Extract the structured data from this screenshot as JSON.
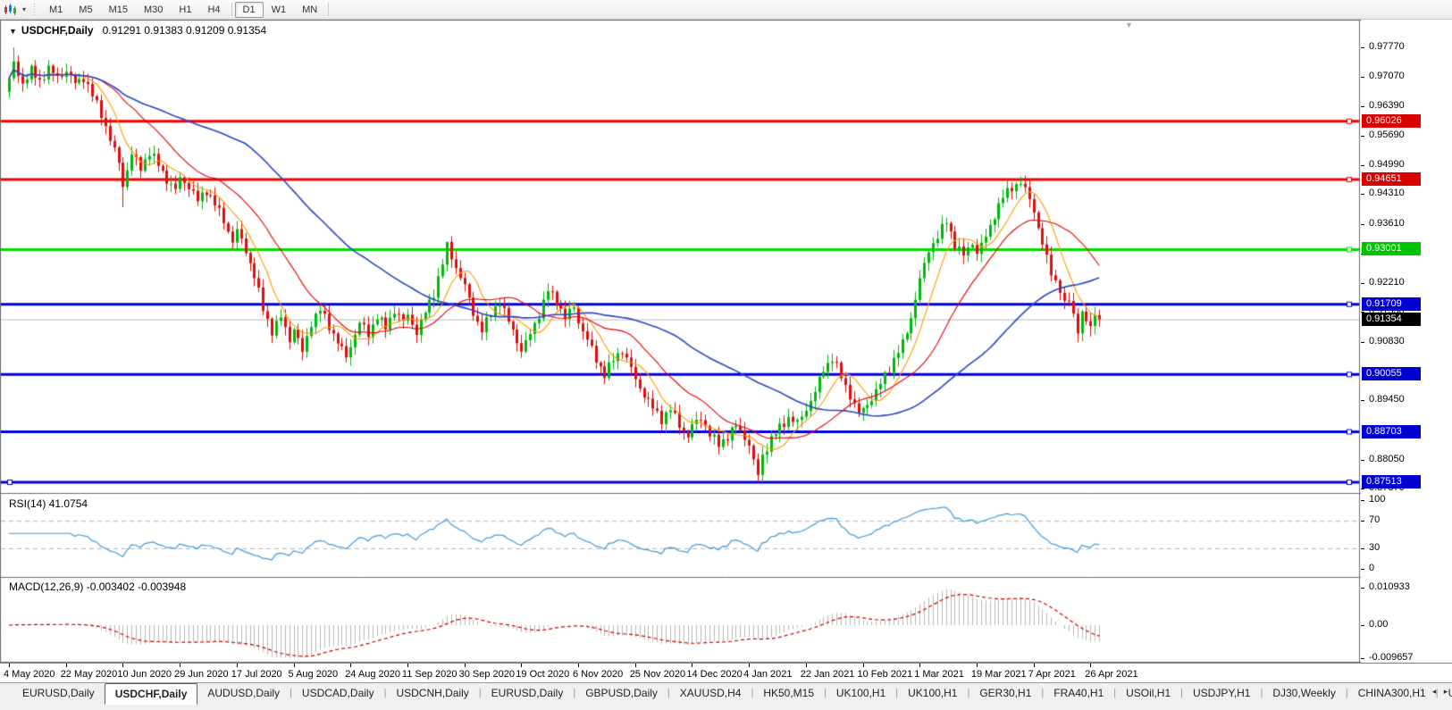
{
  "toolbar": {
    "chart_icon": "candlestick-chart-icon",
    "dropdown_caret": "▾",
    "periods": [
      {
        "label": "M1",
        "active": false,
        "sep_before": false
      },
      {
        "label": "M5",
        "active": false,
        "sep_before": false
      },
      {
        "label": "M15",
        "active": false,
        "sep_before": false
      },
      {
        "label": "M30",
        "active": false,
        "sep_before": false
      },
      {
        "label": "H1",
        "active": false,
        "sep_before": false
      },
      {
        "label": "H4",
        "active": false,
        "sep_before": false
      },
      {
        "label": "D1",
        "active": true,
        "sep_before": true
      },
      {
        "label": "W1",
        "active": false,
        "sep_before": false
      },
      {
        "label": "MN",
        "active": false,
        "sep_before": false
      }
    ]
  },
  "chart_header": {
    "collapse_icon": "▼",
    "symbol": "USDCHF,Daily",
    "ohlc": "0.91291 0.91383 0.91209 0.91354"
  },
  "indicators": {
    "rsi": {
      "label": "RSI(14)",
      "value": "41.0754",
      "color": "#3e9bde",
      "levels": [
        70,
        30
      ],
      "range": [
        0,
        100
      ],
      "axis_labels": [
        {
          "text": "100",
          "value": 100
        },
        {
          "text": "70",
          "value": 70
        },
        {
          "text": "30",
          "value": 30
        },
        {
          "text": "0",
          "value": 0
        }
      ]
    },
    "macd": {
      "label": "MACD(12,26,9)",
      "value": "-0.003402 -0.003948",
      "histogram_color": "#b8b8b8",
      "signal_color": "#cc0000",
      "axis_labels": [
        {
          "text": "0.010933",
          "value": 0.010933
        },
        {
          "text": "0.00",
          "value": 0.0
        },
        {
          "text": "-0.009657",
          "value": -0.009657
        }
      ]
    }
  },
  "price_axis": {
    "ticks": [
      {
        "label": "0.97770",
        "price": 0.9777
      },
      {
        "label": "0.97070",
        "price": 0.9707
      },
      {
        "label": "0.96390",
        "price": 0.9639
      },
      {
        "label": "0.95690",
        "price": 0.9569
      },
      {
        "label": "0.94990",
        "price": 0.9499
      },
      {
        "label": "0.94310",
        "price": 0.9431
      },
      {
        "label": "0.93610",
        "price": 0.9361
      },
      {
        "label": "0.92910",
        "price": 0.9291
      },
      {
        "label": "0.92210",
        "price": 0.9221
      },
      {
        "label": "0.91530",
        "price": 0.9153
      },
      {
        "label": "0.90830",
        "price": 0.9083
      },
      {
        "label": "0.89450",
        "price": 0.8945
      },
      {
        "label": "0.88050",
        "price": 0.8805
      },
      {
        "label": "0.87370",
        "price": 0.8737
      }
    ]
  },
  "tabs": {
    "items": [
      {
        "label": "EURUSD,Daily",
        "active": false
      },
      {
        "label": "USDCHF,Daily",
        "active": true
      },
      {
        "label": "AUDUSD,Daily",
        "active": false
      },
      {
        "label": "USDCAD,Daily",
        "active": false
      },
      {
        "label": "USDCNH,Daily",
        "active": false
      },
      {
        "label": "EURUSD,Daily",
        "active": false
      },
      {
        "label": "GBPUSD,Daily",
        "active": false
      },
      {
        "label": "XAUUSD,H4",
        "active": false
      },
      {
        "label": "HK50,M15",
        "active": false
      },
      {
        "label": "UK100,H1",
        "active": false
      },
      {
        "label": "UK100,H1",
        "active": false
      },
      {
        "label": "GER30,H1",
        "active": false
      },
      {
        "label": "FRA40,H1",
        "active": false
      },
      {
        "label": "USOil,H1",
        "active": false
      },
      {
        "label": "USDJPY,H1",
        "active": false
      },
      {
        "label": "DJ30,Weekly",
        "active": false
      },
      {
        "label": "CHINA300,H1",
        "active": false
      },
      {
        "label": "U",
        "active": false
      }
    ],
    "scroll_left": "◂",
    "scroll_right": "▸"
  },
  "chart_data": {
    "type": "candlestick",
    "symbol": "USDCHF",
    "timeframe": "Daily",
    "ohlc_current": {
      "open": 0.91291,
      "high": 0.91383,
      "low": 0.91209,
      "close": 0.91354
    },
    "ylim": [
      0.8726,
      0.979
    ],
    "bull_color": "#00b80b",
    "bear_color": "#df0d0d",
    "current_price_line": {
      "price": 0.91354,
      "label": "0.91354",
      "color": "#bdbdbd",
      "badge_color": "#000000"
    },
    "horizontal_lines": [
      {
        "price": 0.96026,
        "label": "0.96026",
        "color": "#ee0000",
        "badge_color": "#d90000"
      },
      {
        "price": 0.94651,
        "label": "0.94651",
        "color": "#ee0000",
        "badge_color": "#d90000"
      },
      {
        "price": 0.93001,
        "label": "0.93001",
        "color": "#00dd00",
        "badge_color": "#00c400"
      },
      {
        "price": 0.91709,
        "label": "0.91709",
        "color": "#0000dd",
        "badge_color": "#0000d2"
      },
      {
        "price": 0.90055,
        "label": "0.90055",
        "color": "#0000dd",
        "badge_color": "#0000d2"
      },
      {
        "price": 0.88703,
        "label": "0.88703",
        "color": "#0000dd",
        "badge_color": "#0000d2"
      },
      {
        "price": 0.87513,
        "label": "0.87513",
        "color": "#0000dd",
        "badge_color": "#0000d2"
      }
    ],
    "moving_averages": [
      {
        "name": "fast-ma",
        "period": 8,
        "color": "#ff9a00",
        "width": 1.1
      },
      {
        "name": "medium-ma",
        "period": 21,
        "color": "#e60000",
        "width": 1.1
      },
      {
        "name": "slow-ma",
        "period": 55,
        "color": "#2b46c8",
        "width": 1.6
      }
    ],
    "x_labels": [
      "4 May 2020",
      "22 May 2020",
      "10 Jun 2020",
      "29 Jun 2020",
      "17 Jul 2020",
      "5 Aug 2020",
      "24 Aug 2020",
      "11 Sep 2020",
      "30 Sep 2020",
      "19 Oct 2020",
      "6 Nov 2020",
      "25 Nov 2020",
      "14 Dec 2020",
      "4 Jan 2021",
      "22 Jan 2021",
      "10 Feb 2021",
      "1 Mar 2021",
      "19 Mar 2021",
      "7 Apr 2021",
      "26 Apr 2021"
    ],
    "candles_per_label": 13,
    "num_candles": 250,
    "first_open": 0.9672,
    "close_anchors": [
      [
        0,
        0.97
      ],
      [
        1,
        0.9738
      ],
      [
        3,
        0.9692
      ],
      [
        5,
        0.9722
      ],
      [
        7,
        0.9698
      ],
      [
        9,
        0.9726
      ],
      [
        11,
        0.9706
      ],
      [
        13,
        0.9722
      ],
      [
        15,
        0.9692
      ],
      [
        17,
        0.9706
      ],
      [
        19,
        0.9664
      ],
      [
        21,
        0.962
      ],
      [
        23,
        0.956
      ],
      [
        25,
        0.9505
      ],
      [
        26,
        0.9452
      ],
      [
        28,
        0.9525
      ],
      [
        30,
        0.9492
      ],
      [
        32,
        0.953
      ],
      [
        34,
        0.95
      ],
      [
        36,
        0.9465
      ],
      [
        38,
        0.944
      ],
      [
        39,
        0.9468
      ],
      [
        41,
        0.945
      ],
      [
        43,
        0.9415
      ],
      [
        45,
        0.944
      ],
      [
        47,
        0.9408
      ],
      [
        49,
        0.9368
      ],
      [
        51,
        0.932
      ],
      [
        52,
        0.9344
      ],
      [
        54,
        0.9298
      ],
      [
        56,
        0.9238
      ],
      [
        58,
        0.916
      ],
      [
        60,
        0.9108
      ],
      [
        62,
        0.914
      ],
      [
        64,
        0.9088
      ],
      [
        65,
        0.9114
      ],
      [
        67,
        0.9058
      ],
      [
        69,
        0.9128
      ],
      [
        71,
        0.9158
      ],
      [
        73,
        0.912
      ],
      [
        75,
        0.9082
      ],
      [
        77,
        0.9046
      ],
      [
        78,
        0.9074
      ],
      [
        80,
        0.9128
      ],
      [
        82,
        0.91
      ],
      [
        84,
        0.9144
      ],
      [
        86,
        0.9114
      ],
      [
        88,
        0.9158
      ],
      [
        90,
        0.913
      ],
      [
        91,
        0.9144
      ],
      [
        93,
        0.9106
      ],
      [
        95,
        0.9152
      ],
      [
        97,
        0.9198
      ],
      [
        99,
        0.9268
      ],
      [
        100,
        0.9308
      ],
      [
        102,
        0.9258
      ],
      [
        104,
        0.9214
      ],
      [
        106,
        0.915
      ],
      [
        108,
        0.911
      ],
      [
        110,
        0.9148
      ],
      [
        112,
        0.9178
      ],
      [
        114,
        0.913
      ],
      [
        116,
        0.9086
      ],
      [
        117,
        0.9062
      ],
      [
        119,
        0.91
      ],
      [
        121,
        0.9148
      ],
      [
        123,
        0.9204
      ],
      [
        125,
        0.9178
      ],
      [
        127,
        0.914
      ],
      [
        129,
        0.9164
      ],
      [
        130,
        0.913
      ],
      [
        132,
        0.9088
      ],
      [
        134,
        0.904
      ],
      [
        136,
        0.9006
      ],
      [
        138,
        0.904
      ],
      [
        140,
        0.9064
      ],
      [
        142,
        0.902
      ],
      [
        143,
        0.8992
      ],
      [
        145,
        0.8958
      ],
      [
        147,
        0.8926
      ],
      [
        149,
        0.89
      ],
      [
        151,
        0.8924
      ],
      [
        153,
        0.8886
      ],
      [
        155,
        0.886
      ],
      [
        156,
        0.8884
      ],
      [
        158,
        0.8904
      ],
      [
        160,
        0.8864
      ],
      [
        162,
        0.884
      ],
      [
        164,
        0.886
      ],
      [
        166,
        0.8884
      ],
      [
        168,
        0.8858
      ],
      [
        169,
        0.884
      ],
      [
        170,
        0.88
      ],
      [
        171,
        0.8768
      ],
      [
        172,
        0.8814
      ],
      [
        174,
        0.8854
      ],
      [
        176,
        0.888
      ],
      [
        178,
        0.8904
      ],
      [
        180,
        0.889
      ],
      [
        182,
        0.8924
      ],
      [
        184,
        0.8964
      ],
      [
        186,
        0.9018
      ],
      [
        188,
        0.9044
      ],
      [
        190,
        0.9
      ],
      [
        192,
        0.8956
      ],
      [
        194,
        0.8912
      ],
      [
        196,
        0.8936
      ],
      [
        198,
        0.8964
      ],
      [
        200,
        0.9004
      ],
      [
        202,
        0.904
      ],
      [
        204,
        0.9078
      ],
      [
        206,
        0.914
      ],
      [
        208,
        0.9228
      ],
      [
        210,
        0.93
      ],
      [
        212,
        0.933
      ],
      [
        214,
        0.9368
      ],
      [
        216,
        0.9312
      ],
      [
        218,
        0.9286
      ],
      [
        220,
        0.9318
      ],
      [
        221,
        0.9292
      ],
      [
        223,
        0.933
      ],
      [
        225,
        0.9382
      ],
      [
        227,
        0.9424
      ],
      [
        229,
        0.9448
      ],
      [
        231,
        0.9458
      ],
      [
        233,
        0.942
      ],
      [
        234,
        0.9392
      ],
      [
        236,
        0.9312
      ],
      [
        238,
        0.9246
      ],
      [
        240,
        0.9206
      ],
      [
        241,
        0.9168
      ],
      [
        242,
        0.9182
      ],
      [
        243,
        0.9146
      ],
      [
        244,
        0.9112
      ],
      [
        245,
        0.915
      ],
      [
        246,
        0.9128
      ],
      [
        247,
        0.9118
      ],
      [
        248,
        0.9148
      ],
      [
        249,
        0.91354
      ]
    ],
    "extreme_overrides": {
      "highs": [
        [
          1,
          0.9777
        ],
        [
          2,
          0.9758
        ],
        [
          100,
          0.9312
        ],
        [
          231,
          0.9472
        ]
      ],
      "lows": [
        [
          26,
          0.94
        ],
        [
          171,
          0.8752
        ],
        [
          244,
          0.9082
        ],
        [
          247,
          0.9095
        ]
      ]
    }
  }
}
